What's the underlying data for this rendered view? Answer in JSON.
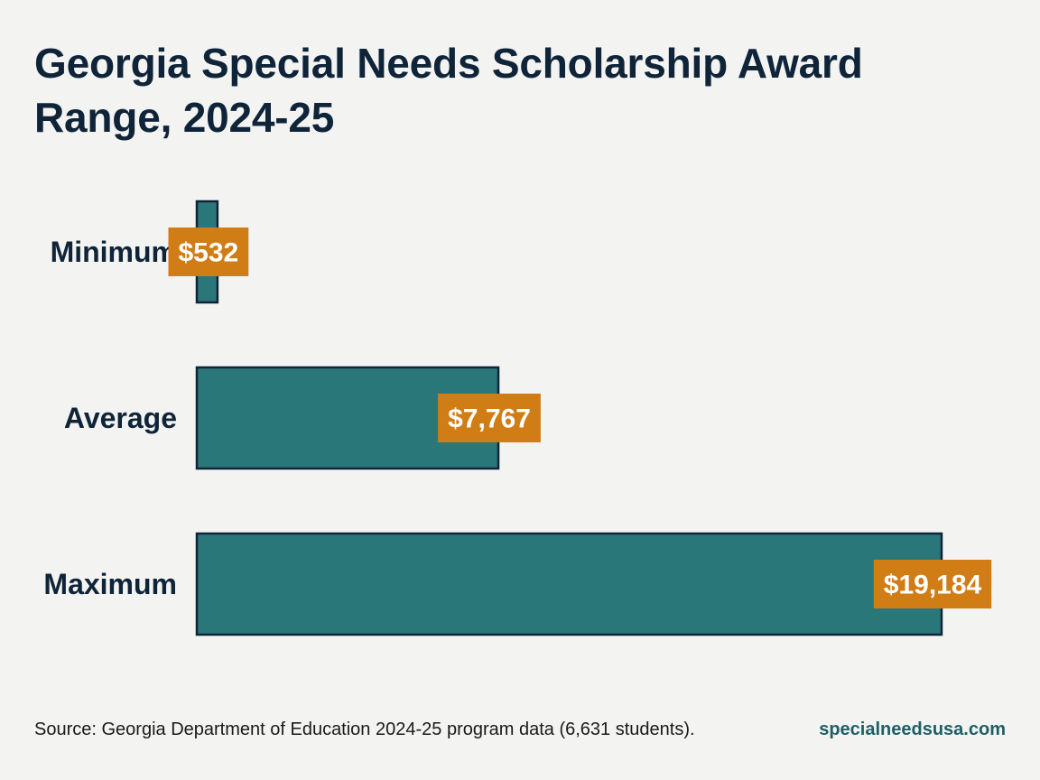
{
  "footer": {
    "source": "Source: Georgia Department of Education 2024-25 program data (6,631 students).",
    "site": "specialneedsusa.com"
  },
  "colors": {
    "bar_fill": "#2a777a",
    "bar_stroke": "#0f2438",
    "label_box": "#d17d16",
    "text_dark": "#0f2438"
  },
  "chart_data": {
    "type": "bar",
    "orientation": "horizontal",
    "title": "Georgia Special Needs Scholarship Award Range, 2024-25",
    "categories": [
      "Minimum",
      "Average",
      "Maximum"
    ],
    "values": [
      532,
      7767,
      19184
    ],
    "value_labels": [
      "$532",
      "$7,767",
      "$19,184"
    ],
    "xlim": [
      0,
      19184
    ],
    "grid": false,
    "legend": "none"
  }
}
